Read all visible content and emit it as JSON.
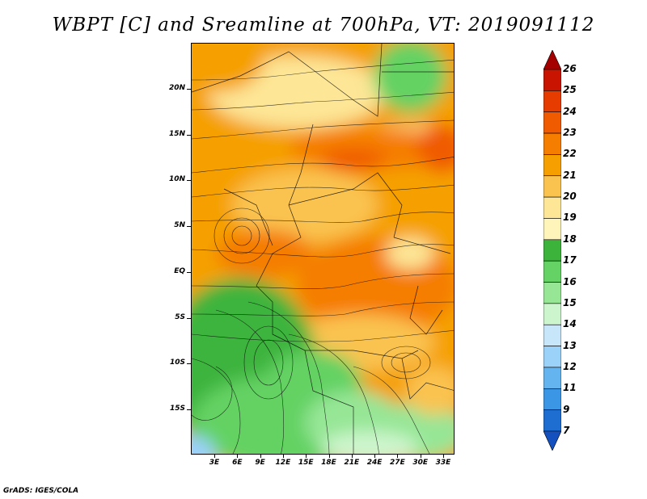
{
  "title": "WBPT [C] and Sreamline at 700hPa, VT: 2019091112",
  "credit": "GrADS: IGES/COLA",
  "map": {
    "lat_labels": [
      "20N",
      "15N",
      "10N",
      "5N",
      "EQ",
      "5S",
      "10S",
      "15S"
    ],
    "lon_labels": [
      "3E",
      "6E",
      "9E",
      "12E",
      "15E",
      "18E",
      "21E",
      "24E",
      "27E",
      "30E",
      "33E"
    ]
  },
  "colorbar": {
    "labels": [
      "26",
      "25",
      "24",
      "23",
      "22",
      "21",
      "20",
      "19",
      "18",
      "17",
      "16",
      "15",
      "14",
      "13",
      "12",
      "11",
      "9",
      "7"
    ],
    "colors": [
      "#a50000",
      "#c81400",
      "#e63c00",
      "#f05a00",
      "#f57d00",
      "#f5a000",
      "#fac350",
      "#fde696",
      "#fff5bb",
      "#3cb43c",
      "#64d264",
      "#96e696",
      "#cdf5cd",
      "#c8e6fa",
      "#9bd2fa",
      "#64b4f0",
      "#3c96e6",
      "#1e6ed2",
      "#1450be"
    ]
  }
}
